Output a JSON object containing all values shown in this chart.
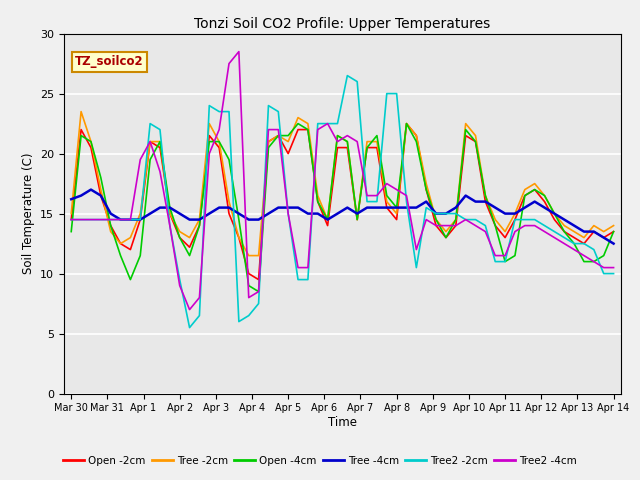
{
  "title": "Tonzi Soil CO2 Profile: Upper Temperatures",
  "xlabel": "Time",
  "ylabel": "Soil Temperature (C)",
  "ylim": [
    0,
    30
  ],
  "bg_color": "#e8e8e8",
  "label_box": "TZ_soilco2",
  "xtick_labels": [
    "Mar 30",
    "Mar 31",
    "Apr 1",
    "Apr 2",
    "Apr 3",
    "Apr 4",
    "Apr 5",
    "Apr 6",
    "Apr 7",
    "Apr 8",
    "Apr 9",
    "Apr 10",
    "Apr 11",
    "Apr 12",
    "Apr 13",
    "Apr 14"
  ],
  "series": [
    {
      "label": "Open -2cm",
      "color": "#ff0000",
      "lw": 1.2,
      "values": [
        14.5,
        22.0,
        20.5,
        16.5,
        14.0,
        12.5,
        12.0,
        14.5,
        21.0,
        20.5,
        15.0,
        13.0,
        12.2,
        14.0,
        21.5,
        20.5,
        15.0,
        13.0,
        10.0,
        9.5,
        21.0,
        21.5,
        20.0,
        22.0,
        22.0,
        16.0,
        14.0,
        20.5,
        20.5,
        14.5,
        20.5,
        20.5,
        15.5,
        14.5,
        22.5,
        21.5,
        17.0,
        14.0,
        13.0,
        14.0,
        21.5,
        21.0,
        16.0,
        14.0,
        13.0,
        14.5,
        16.5,
        17.0,
        16.0,
        14.5,
        13.5,
        13.0,
        12.5,
        13.5,
        13.0,
        13.5
      ]
    },
    {
      "label": "Tree -2cm",
      "color": "#ff9900",
      "lw": 1.2,
      "values": [
        15.0,
        23.5,
        21.0,
        17.0,
        13.5,
        12.5,
        13.0,
        15.0,
        21.0,
        21.0,
        15.0,
        13.5,
        13.0,
        14.5,
        22.5,
        21.0,
        16.0,
        13.0,
        11.5,
        11.5,
        21.0,
        21.5,
        21.0,
        23.0,
        22.5,
        16.5,
        14.5,
        21.5,
        21.0,
        14.5,
        21.0,
        21.0,
        16.0,
        15.0,
        22.5,
        21.5,
        17.5,
        14.5,
        13.5,
        14.5,
        22.5,
        21.5,
        16.5,
        14.5,
        13.5,
        15.0,
        17.0,
        17.5,
        16.5,
        15.0,
        14.0,
        13.5,
        13.0,
        14.0,
        13.5,
        14.0
      ]
    },
    {
      "label": "Open -4cm",
      "color": "#00cc00",
      "lw": 1.2,
      "values": [
        13.5,
        21.5,
        21.0,
        18.0,
        14.0,
        11.5,
        9.5,
        11.5,
        19.5,
        21.0,
        15.5,
        13.0,
        11.5,
        14.0,
        21.0,
        21.0,
        19.5,
        14.5,
        9.0,
        8.5,
        20.5,
        21.5,
        21.5,
        22.5,
        22.0,
        16.0,
        14.5,
        21.5,
        21.0,
        14.5,
        20.5,
        21.5,
        16.5,
        15.5,
        22.5,
        21.0,
        17.0,
        14.5,
        13.0,
        14.5,
        22.0,
        21.0,
        16.5,
        14.0,
        11.0,
        11.5,
        16.5,
        17.0,
        16.5,
        15.0,
        13.5,
        12.5,
        11.0,
        11.0,
        11.5,
        13.5
      ]
    },
    {
      "label": "Tree -4cm",
      "color": "#0000cc",
      "lw": 1.8,
      "values": [
        16.2,
        16.5,
        17.0,
        16.5,
        15.0,
        14.5,
        14.5,
        14.5,
        15.0,
        15.5,
        15.5,
        15.0,
        14.5,
        14.5,
        15.0,
        15.5,
        15.5,
        15.0,
        14.5,
        14.5,
        15.0,
        15.5,
        15.5,
        15.5,
        15.0,
        15.0,
        14.5,
        15.0,
        15.5,
        15.0,
        15.5,
        15.5,
        15.5,
        15.5,
        15.5,
        15.5,
        16.0,
        15.0,
        15.0,
        15.5,
        16.5,
        16.0,
        16.0,
        15.5,
        15.0,
        15.0,
        15.5,
        16.0,
        15.5,
        15.0,
        14.5,
        14.0,
        13.5,
        13.5,
        13.0,
        12.5
      ]
    },
    {
      "label": "Tree2 -2cm",
      "color": "#00cccc",
      "lw": 1.2,
      "values": [
        14.5,
        14.5,
        14.5,
        14.5,
        14.5,
        14.5,
        14.5,
        14.5,
        22.5,
        22.0,
        14.0,
        9.5,
        5.5,
        6.5,
        24.0,
        23.5,
        23.5,
        6.0,
        6.5,
        7.5,
        24.0,
        23.5,
        15.0,
        9.5,
        9.5,
        22.5,
        22.5,
        22.5,
        26.5,
        26.0,
        16.0,
        16.0,
        25.0,
        25.0,
        16.0,
        10.5,
        15.5,
        15.0,
        15.0,
        15.0,
        14.5,
        14.5,
        14.0,
        11.0,
        11.0,
        14.5,
        14.5,
        14.5,
        14.0,
        13.5,
        13.0,
        12.5,
        12.5,
        12.0,
        10.0,
        10.0
      ]
    },
    {
      "label": "Tree2 -4cm",
      "color": "#cc00cc",
      "lw": 1.2,
      "values": [
        14.5,
        14.5,
        14.5,
        14.5,
        14.5,
        14.5,
        14.5,
        19.5,
        21.0,
        18.5,
        14.0,
        9.0,
        7.0,
        8.0,
        20.0,
        22.0,
        27.5,
        28.5,
        8.0,
        8.5,
        22.0,
        22.0,
        15.0,
        10.5,
        10.5,
        22.0,
        22.5,
        21.0,
        21.5,
        21.0,
        16.5,
        16.5,
        17.5,
        17.0,
        16.5,
        12.0,
        14.5,
        14.0,
        14.0,
        14.0,
        14.5,
        14.0,
        13.5,
        11.5,
        11.5,
        13.5,
        14.0,
        14.0,
        13.5,
        13.0,
        12.5,
        12.0,
        11.5,
        11.0,
        10.5,
        10.5
      ]
    }
  ]
}
